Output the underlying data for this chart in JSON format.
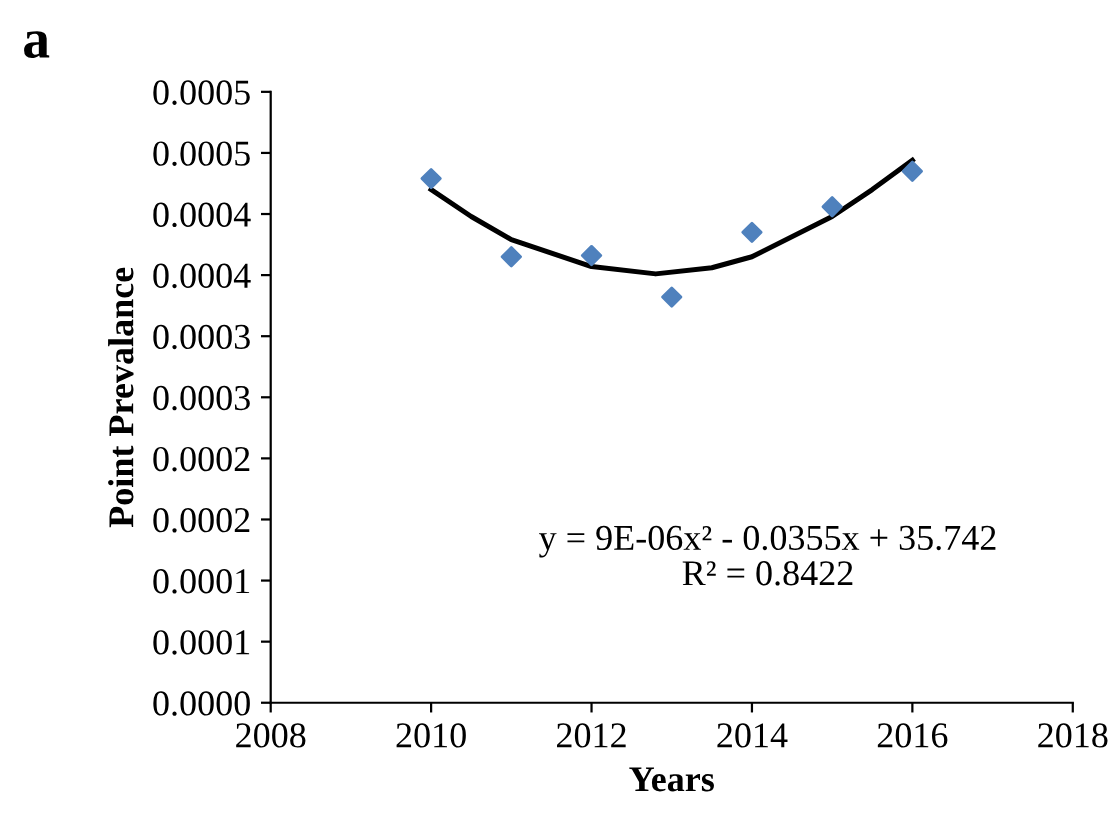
{
  "chart_data": {
    "type": "scatter",
    "title": "a",
    "xlabel": "Years",
    "ylabel": "Point Prevalance",
    "x": [
      2010,
      2011,
      2012,
      2013,
      2014,
      2015,
      2016
    ],
    "series": [
      {
        "color": "#4f81bd",
        "marker": "diamond",
        "values": [
          0.000429,
          0.000365,
          0.000366,
          0.000332,
          0.000385,
          0.000406,
          0.000435
        ]
      },
      {
        "type": "line",
        "color": "#000000",
        "marker": "none",
        "line_style": "solid",
        "x": [
          2010,
          2010.5,
          2011,
          2012,
          2012.8,
          2013.5,
          2014,
          2015,
          2015.5,
          2016
        ],
        "values": [
          0.00042,
          0.000398,
          0.000379,
          0.000357,
          0.000351,
          0.000356,
          0.000365,
          0.000398,
          0.00042,
          0.000444
        ]
      }
    ],
    "xlim": [
      2008,
      2018
    ],
    "xticks": [
      2008,
      2010,
      2012,
      2014,
      2016,
      2018
    ],
    "ylim": [
      0,
      0.0005
    ],
    "yticks": [
      {
        "value": 0,
        "label": "0.0000"
      },
      {
        "value": 5e-05,
        "label": "0.0001"
      },
      {
        "value": 0.0001,
        "label": "0.0001"
      },
      {
        "value": 0.00015,
        "label": "0.0002"
      },
      {
        "value": 0.0002,
        "label": "0.0002"
      },
      {
        "value": 0.00025,
        "label": "0.0003"
      },
      {
        "value": 0.0003,
        "label": "0.0003"
      },
      {
        "value": 0.00035,
        "label": "0.0004"
      },
      {
        "value": 0.0004,
        "label": "0.0004"
      },
      {
        "value": 0.00045,
        "label": "0.0005"
      },
      {
        "value": 0.0005,
        "label": "0.0005"
      }
    ],
    "annotations": [
      "y = 9E-06x² - 0.0355x + 35.742\nR² = 0.8422"
    ],
    "grid": false,
    "legend": false
  }
}
